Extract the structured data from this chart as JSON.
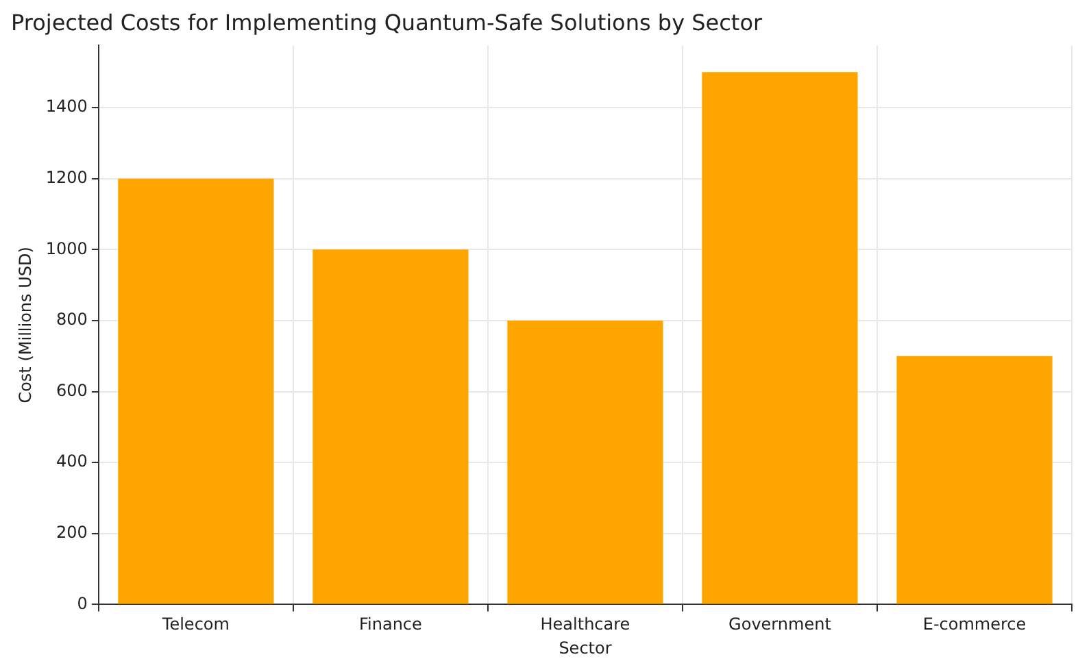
{
  "chart_data": {
    "type": "bar",
    "title": "Projected Costs for Implementing Quantum-Safe Solutions by Sector",
    "xlabel": "Sector",
    "ylabel": "Cost (Millions USD)",
    "categories": [
      "Telecom",
      "Finance",
      "Healthcare",
      "Government",
      "E-commerce"
    ],
    "values": [
      1200,
      1000,
      800,
      1500,
      700
    ],
    "color": "#ffa500",
    "ylim": [
      0,
      1575
    ],
    "yticks": [
      0,
      200,
      400,
      600,
      800,
      1000,
      1200,
      1400
    ],
    "grid": true
  }
}
